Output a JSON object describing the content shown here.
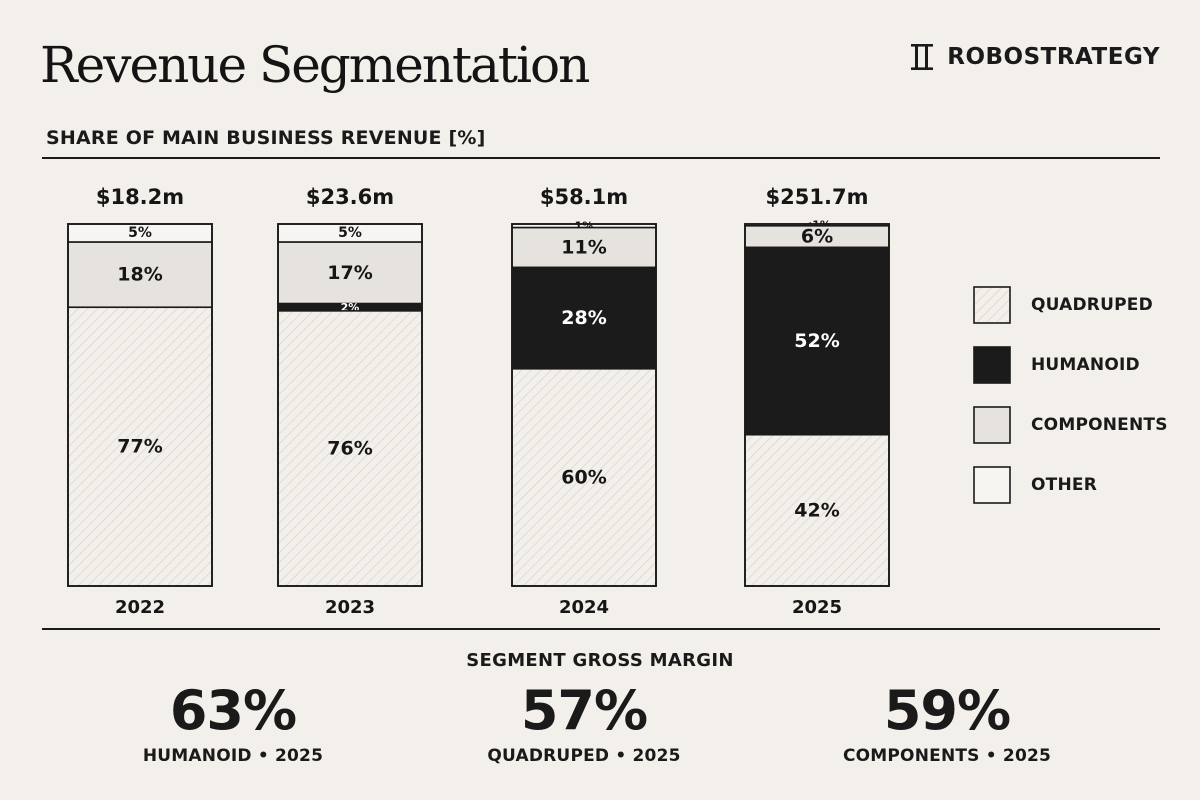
{
  "header": {
    "title": "Revenue Segmentation",
    "brand": "ROBOSTRATEGY",
    "brand_icon": "robostrategy-logo-icon"
  },
  "chart_data": {
    "type": "bar",
    "stacked": true,
    "normalized": true,
    "title": "SHARE OF MAIN BUSINESS REVENUE [%]",
    "categories": [
      "2022",
      "2023",
      "2024",
      "2025"
    ],
    "totals": [
      "$18.2m",
      "$23.6m",
      "$58.1m",
      "$251.7m"
    ],
    "series": [
      {
        "name": "QUADRUPED",
        "values": [
          77,
          76,
          60,
          42
        ],
        "labels": [
          "77%",
          "76%",
          "60%",
          "42%"
        ],
        "fill": "hatched",
        "color": "#f3efea"
      },
      {
        "name": "HUMANOID",
        "values": [
          0,
          2,
          28,
          52
        ],
        "labels": [
          "",
          "2%",
          "28%",
          "52%"
        ],
        "fill": "solid",
        "color": "#1b1b1b"
      },
      {
        "name": "COMPONENTS",
        "values": [
          18,
          17,
          11,
          6
        ],
        "labels": [
          "18%",
          "17%",
          "11%",
          "6%"
        ],
        "fill": "solid",
        "color": "#e6e2dd"
      },
      {
        "name": "OTHER",
        "values": [
          5,
          5,
          1,
          0.5
        ],
        "labels": [
          "5%",
          "5%",
          "1%",
          "<1%"
        ],
        "fill": "solid",
        "color": "#f7f5f2"
      }
    ],
    "ylim": [
      0,
      100
    ],
    "legend_position": "right",
    "grid": false
  },
  "margins": {
    "title": "SEGMENT GROSS MARGIN",
    "items": [
      {
        "value": "63%",
        "caption": "HUMANOID • 2025"
      },
      {
        "value": "57%",
        "caption": "QUADRUPED • 2025"
      },
      {
        "value": "59%",
        "caption": "COMPONENTS • 2025"
      }
    ]
  }
}
